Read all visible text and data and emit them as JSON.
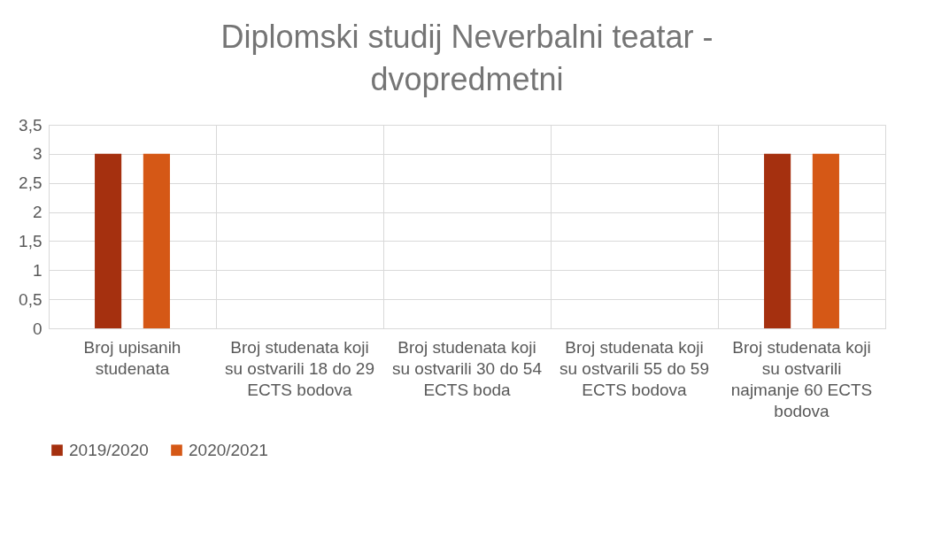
{
  "chart_data": {
    "type": "bar",
    "title": "Diplomski studij Neverbalni teatar - dvopredmetni",
    "categories": [
      "Broj upisanih studenata",
      "Broj studenata koji su ostvarili 18 do 29 ECTS bodova",
      "Broj studenata koji su ostvarili 30 do 54 ECTS boda",
      "Broj studenata koji su ostvarili 55 do 59 ECTS bodova",
      "Broj studenata koji su ostvarili najmanje 60 ECTS bodova"
    ],
    "series": [
      {
        "name": "2019/2020",
        "color": "#a5300f",
        "values": [
          3,
          0,
          0,
          0,
          3
        ]
      },
      {
        "name": "2020/2021",
        "color": "#d55816",
        "values": [
          3,
          0,
          0,
          0,
          3
        ]
      }
    ],
    "ylim": [
      0,
      3.5
    ],
    "yticks": [
      0,
      {
        "value": 0.5,
        "label": "0,5"
      },
      1,
      {
        "value": 1.5,
        "label": "1,5"
      },
      2,
      {
        "value": 2.5,
        "label": "2,5"
      },
      3,
      {
        "value": 3.5,
        "label": "3,5"
      }
    ],
    "grid": true,
    "legend": "bottom"
  }
}
